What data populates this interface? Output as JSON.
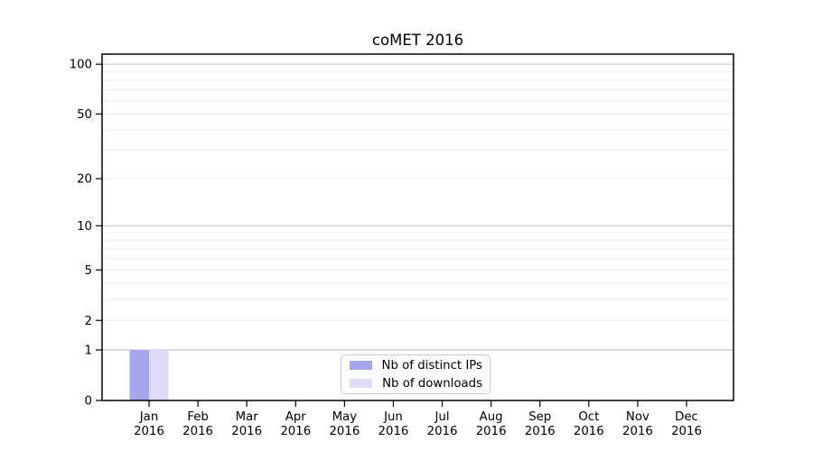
{
  "title": "coMET 2016",
  "colors": {
    "background": "#ffffff",
    "frame": "#000000",
    "tick_text": "#000000",
    "grid_major": "#c8c8c8",
    "grid_minor": "#ededed",
    "bar_distinct_ips": "#a5a6f0",
    "bar_downloads": "#dcdcf8",
    "legend_border": "#cccccc"
  },
  "legend": {
    "items": [
      {
        "label": "Nb of distinct IPs",
        "color_key": "bar_distinct_ips"
      },
      {
        "label": "Nb of downloads",
        "color_key": "bar_downloads"
      }
    ]
  },
  "chart_data": {
    "type": "bar",
    "title": "coMET 2016",
    "categories": [
      "Jan 2016",
      "Feb 2016",
      "Mar 2016",
      "Apr 2016",
      "May 2016",
      "Jun 2016",
      "Jul 2016",
      "Aug 2016",
      "Sep 2016",
      "Oct 2016",
      "Nov 2016",
      "Dec 2016"
    ],
    "series": [
      {
        "name": "Nb of distinct IPs",
        "color": "#a5a6f0",
        "values": [
          1,
          0,
          0,
          0,
          0,
          0,
          0,
          0,
          0,
          0,
          0,
          0
        ]
      },
      {
        "name": "Nb of downloads",
        "color": "#dcdcf8",
        "values": [
          1,
          0,
          0,
          0,
          0,
          0,
          0,
          0,
          0,
          0,
          0,
          0
        ]
      }
    ],
    "xlabel": "",
    "ylabel": "",
    "yscale": "log1p",
    "ylim": [
      0,
      115
    ],
    "yticks": [
      0,
      1,
      2,
      5,
      10,
      20,
      50,
      100
    ],
    "major_grid_values": [
      1,
      10,
      100
    ],
    "minor_grid_values": [
      2,
      3,
      4,
      5,
      6,
      7,
      8,
      9,
      20,
      30,
      40,
      50,
      60,
      70,
      80,
      90
    ],
    "grid": "horizontal",
    "legend_position": "lower center inside"
  }
}
